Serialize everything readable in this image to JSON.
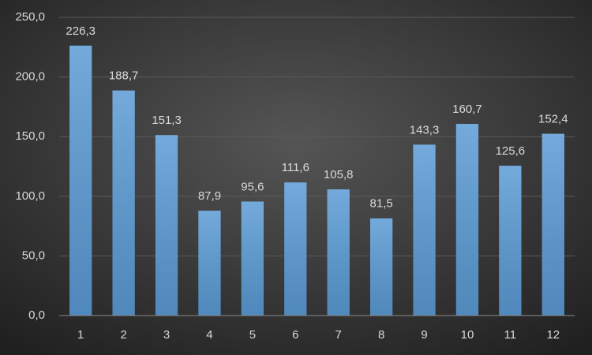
{
  "chart_data": {
    "type": "bar",
    "categories": [
      "1",
      "2",
      "3",
      "4",
      "5",
      "6",
      "7",
      "8",
      "9",
      "10",
      "11",
      "12"
    ],
    "values": [
      226.3,
      188.7,
      151.3,
      87.9,
      95.6,
      111.6,
      105.8,
      81.5,
      143.3,
      160.7,
      125.6,
      152.4
    ],
    "value_labels": [
      "226,3",
      "188,7",
      "151,3",
      "87,9",
      "95,6",
      "111,6",
      "105,8",
      "81,5",
      "143,3",
      "160,7",
      "125,6",
      "152,4"
    ],
    "color": "#5b9bd5",
    "ylim": [
      0,
      250
    ],
    "yticks": [
      {
        "value": 0,
        "label": "0,0"
      },
      {
        "value": 50,
        "label": "50,0"
      },
      {
        "value": 100,
        "label": "100,0"
      },
      {
        "value": 150,
        "label": "150,0"
      },
      {
        "value": 200,
        "label": "200,0"
      },
      {
        "value": 250,
        "label": "250,0"
      }
    ],
    "grid": true
  }
}
